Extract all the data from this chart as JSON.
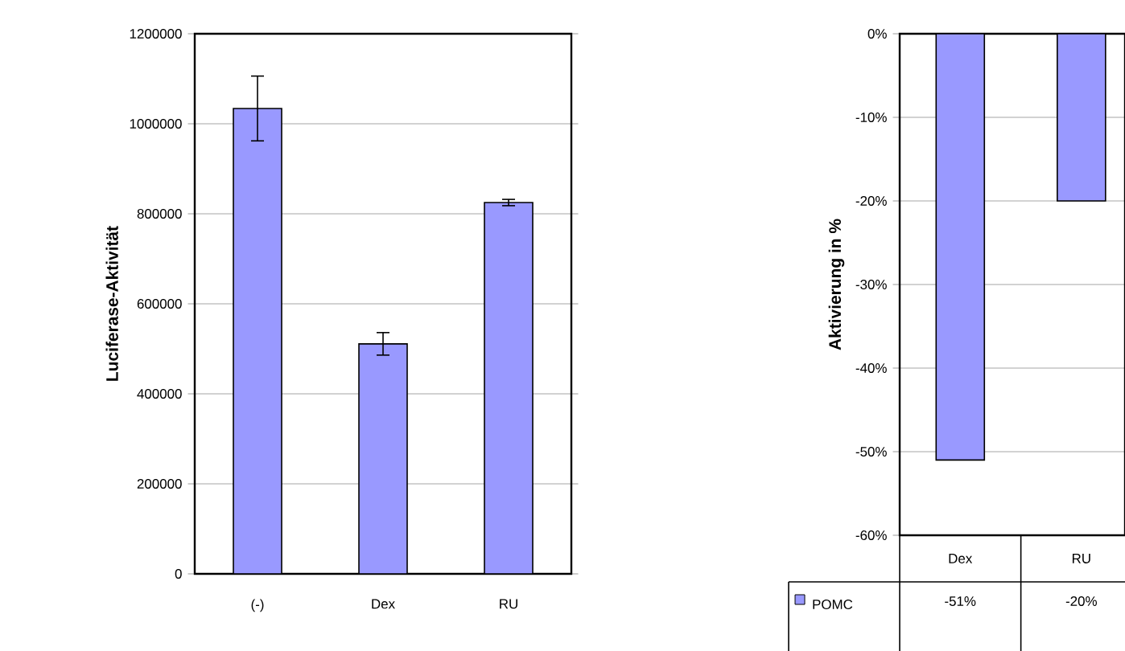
{
  "chart_data": [
    {
      "type": "bar",
      "categories": [
        "(-)",
        "Dex",
        "RU"
      ],
      "values": [
        1034000,
        511000,
        825000
      ],
      "errors": [
        72000,
        25000,
        7000
      ],
      "color": "#9999ff",
      "ylabel": "Luciferase-Aktivität",
      "ylim": [
        0,
        1200000
      ],
      "yticks": [
        0,
        200000,
        400000,
        600000,
        800000,
        1000000,
        1200000
      ],
      "grid": "y"
    },
    {
      "type": "bar",
      "categories": [
        "Dex",
        "RU"
      ],
      "series": [
        {
          "name": "POMC",
          "color": "#9999ff",
          "values": [
            -51,
            -20
          ],
          "value_labels": [
            "-51%",
            "-20%"
          ]
        }
      ],
      "ylabel": "Aktivierung in %",
      "ylim": [
        -60,
        0
      ],
      "yticks": [
        {
          "value": -60,
          "label": "-60%"
        },
        {
          "value": -50,
          "label": "-50%"
        },
        {
          "value": -40,
          "label": "-40%"
        },
        {
          "value": -30,
          "label": "-30%"
        },
        {
          "value": -20,
          "label": "-20%"
        },
        {
          "value": -10,
          "label": "-10%"
        },
        {
          "value": 0,
          "label": "0%"
        }
      ],
      "grid": "y",
      "legend": "bottom left"
    }
  ]
}
